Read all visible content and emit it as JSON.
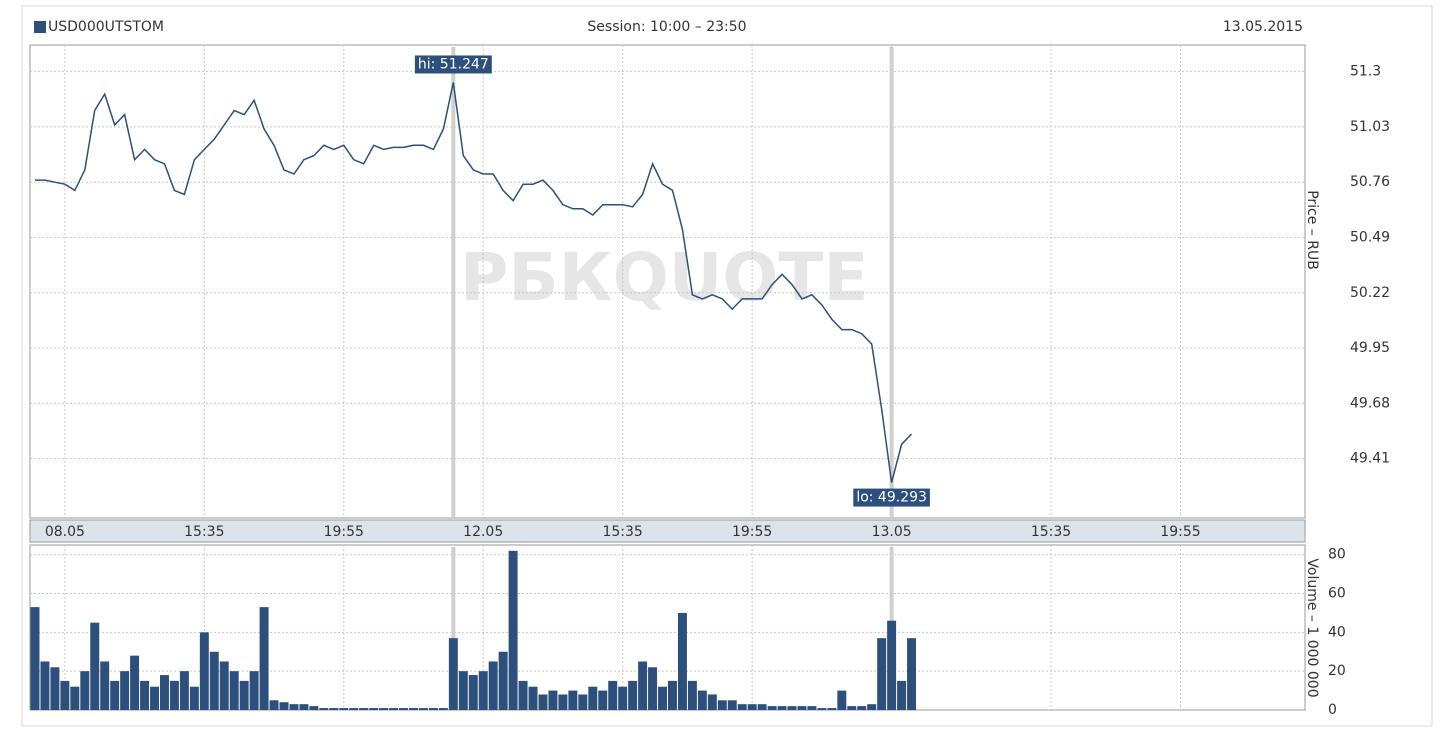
{
  "chart_data": [
    {
      "type": "line",
      "title": "Session: 10:00 – 23:50",
      "subtitle": "13.05.2015",
      "watermark": "РБКQUOTE",
      "categories": [
        null,
        null,
        null,
        "08.05",
        null,
        null,
        null,
        null,
        null,
        null,
        null,
        null,
        null,
        null,
        null,
        null,
        null,
        "15:35",
        null,
        null,
        null,
        null,
        null,
        null,
        null,
        null,
        null,
        null,
        null,
        null,
        null,
        "19:55",
        null,
        null,
        null,
        null,
        null,
        null,
        null,
        null,
        null,
        null,
        null,
        null,
        null,
        "12.05",
        null,
        null,
        null,
        null,
        null,
        null,
        null,
        null,
        null,
        null,
        null,
        null,
        null,
        "15:35",
        null,
        null,
        null,
        null,
        null,
        null,
        null,
        null,
        null,
        null,
        null,
        null,
        "19:55",
        null,
        null,
        null,
        null,
        null,
        null,
        null,
        null,
        null,
        null,
        null,
        null,
        null,
        "13.05",
        null,
        null,
        null,
        null,
        null,
        null,
        null,
        null,
        null,
        null,
        null,
        null,
        null,
        null,
        null,
        "15:35",
        null,
        null,
        null,
        null,
        null,
        null,
        null,
        null,
        null,
        null,
        null,
        null,
        "19:55",
        null,
        null,
        null,
        null,
        null,
        null,
        null,
        null,
        null,
        null,
        null,
        null
      ],
      "series": [
        {
          "name": "USD000UTSTOM",
          "color": "#2c4f7c",
          "values": [
            50.77,
            50.77,
            50.76,
            50.75,
            50.72,
            50.82,
            51.11,
            51.19,
            51.04,
            51.09,
            50.87,
            50.92,
            50.87,
            50.85,
            50.72,
            50.7,
            50.87,
            50.92,
            50.97,
            51.04,
            51.11,
            51.09,
            51.16,
            51.02,
            50.94,
            50.82,
            50.8,
            50.87,
            50.89,
            50.94,
            50.92,
            50.94,
            50.87,
            50.85,
            50.94,
            50.92,
            50.93,
            50.93,
            50.94,
            50.94,
            50.92,
            51.02,
            51.247,
            50.89,
            50.82,
            50.8,
            50.8,
            50.72,
            50.67,
            50.75,
            50.75,
            50.77,
            50.72,
            50.65,
            50.63,
            50.63,
            50.6,
            50.65,
            50.65,
            50.65,
            50.64,
            50.7,
            50.85,
            50.75,
            50.72,
            50.53,
            50.21,
            50.19,
            50.21,
            50.19,
            50.14,
            50.19,
            50.19,
            50.19,
            50.26,
            50.31,
            50.26,
            50.19,
            50.21,
            50.16,
            50.09,
            50.04,
            50.04,
            50.02,
            49.97,
            49.65,
            49.293,
            49.48,
            49.53,
            null,
            null,
            null,
            null,
            null,
            null,
            null,
            null,
            null,
            null,
            null,
            null,
            null,
            null,
            null,
            null,
            null,
            null,
            null,
            null,
            null,
            null,
            null,
            null,
            null,
            null,
            null,
            null,
            null,
            null,
            null,
            null,
            null,
            null,
            null,
            null,
            null,
            null,
            null
          ]
        }
      ],
      "ylim": [
        49.12,
        51.43
      ],
      "yticks": [
        51.3,
        51.03,
        50.76,
        50.49,
        50.22,
        49.95,
        49.68,
        49.41
      ],
      "y_label": "Price – RUB",
      "grid": true,
      "annotations": [
        {
          "text": "hi: 51.247",
          "value": 51.247
        },
        {
          "text": "lo: 49.293",
          "value": 49.293
        }
      ]
    },
    {
      "type": "bar",
      "color": "#2c4f7c",
      "y_label": "Volume – 1 000 000",
      "ylim": [
        0,
        85
      ],
      "yticks": [
        0,
        20,
        40,
        60,
        80
      ],
      "grid": true,
      "values": [
        53,
        25,
        22,
        15,
        12,
        20,
        45,
        25,
        15,
        20,
        28,
        15,
        12,
        18,
        15,
        20,
        12,
        40,
        30,
        25,
        20,
        15,
        20,
        53,
        5,
        4,
        3,
        3,
        2,
        1,
        1,
        1,
        1,
        1,
        1,
        1,
        1,
        1,
        1,
        1,
        1,
        1,
        37,
        20,
        18,
        20,
        25,
        30,
        82,
        15,
        12,
        8,
        10,
        8,
        10,
        8,
        12,
        10,
        15,
        12,
        15,
        25,
        22,
        12,
        15,
        50,
        15,
        10,
        8,
        5,
        5,
        3,
        3,
        3,
        2,
        2,
        2,
        2,
        2,
        1,
        1,
        10,
        2,
        2,
        3,
        37,
        46,
        15,
        37,
        null,
        null,
        null,
        null,
        null,
        null,
        null,
        null,
        null,
        null,
        null,
        null,
        null,
        null,
        null,
        null,
        null,
        null,
        null,
        null,
        null,
        null,
        null,
        null,
        null,
        null,
        null,
        null,
        null,
        null,
        null,
        null,
        null,
        null,
        null,
        null,
        null,
        null,
        null
      ]
    }
  ]
}
